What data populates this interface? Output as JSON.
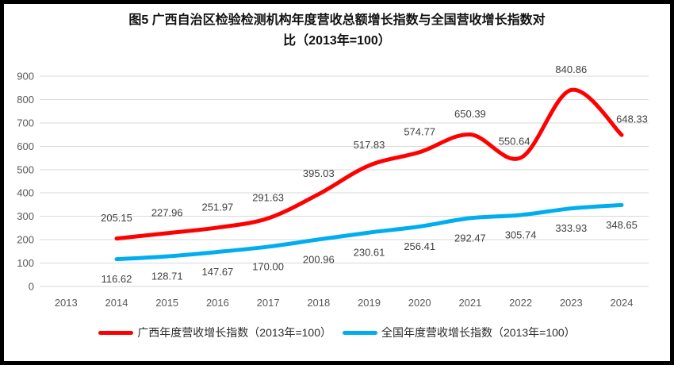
{
  "title": {
    "full": "图5  广西自治区检验检测机构年度营收总额增长指数与全国营收增长指数对比（2013年=100）",
    "line1": "图5  广西自治区检验检测机构年度营收总额增长指数与全国营收增长指数对",
    "line2": "比（2013年=100）"
  },
  "chart_data": {
    "type": "line",
    "title": "图5  广西自治区检验检测机构年度营收总额增长指数与全国营收增长指数对比（2013年=100）",
    "categories": [
      "2013",
      "2014",
      "2015",
      "2016",
      "2017",
      "2018",
      "2019",
      "2020",
      "2021",
      "2022",
      "2023",
      "2024"
    ],
    "series": [
      {
        "key": "guangxi",
        "name": "广西年度营收增长指数（2013年=100）",
        "color": "#FF0000",
        "label_position": "above",
        "values": [
          null,
          205.15,
          227.96,
          251.97,
          291.63,
          395.03,
          517.83,
          574.77,
          650.39,
          550.64,
          840.86,
          648.33
        ]
      },
      {
        "key": "national",
        "name": "全国年度营收增长指数（2013年=100）",
        "color": "#00AEEF",
        "label_position": "below",
        "values": [
          null,
          116.62,
          128.71,
          147.67,
          170.0,
          200.96,
          230.61,
          256.41,
          292.47,
          305.74,
          333.93,
          348.65
        ]
      }
    ],
    "xlabel": "",
    "ylabel": "",
    "ylim": [
      0,
      900
    ],
    "yticks": [
      0,
      100,
      200,
      300,
      400,
      500,
      600,
      700,
      800,
      900
    ],
    "grid": true,
    "gridline_color": "#D9D9D9",
    "axis_label_color": "#595959",
    "data_label_color": "#404040",
    "legend_position": "bottom",
    "data_label_decimals": 2
  }
}
